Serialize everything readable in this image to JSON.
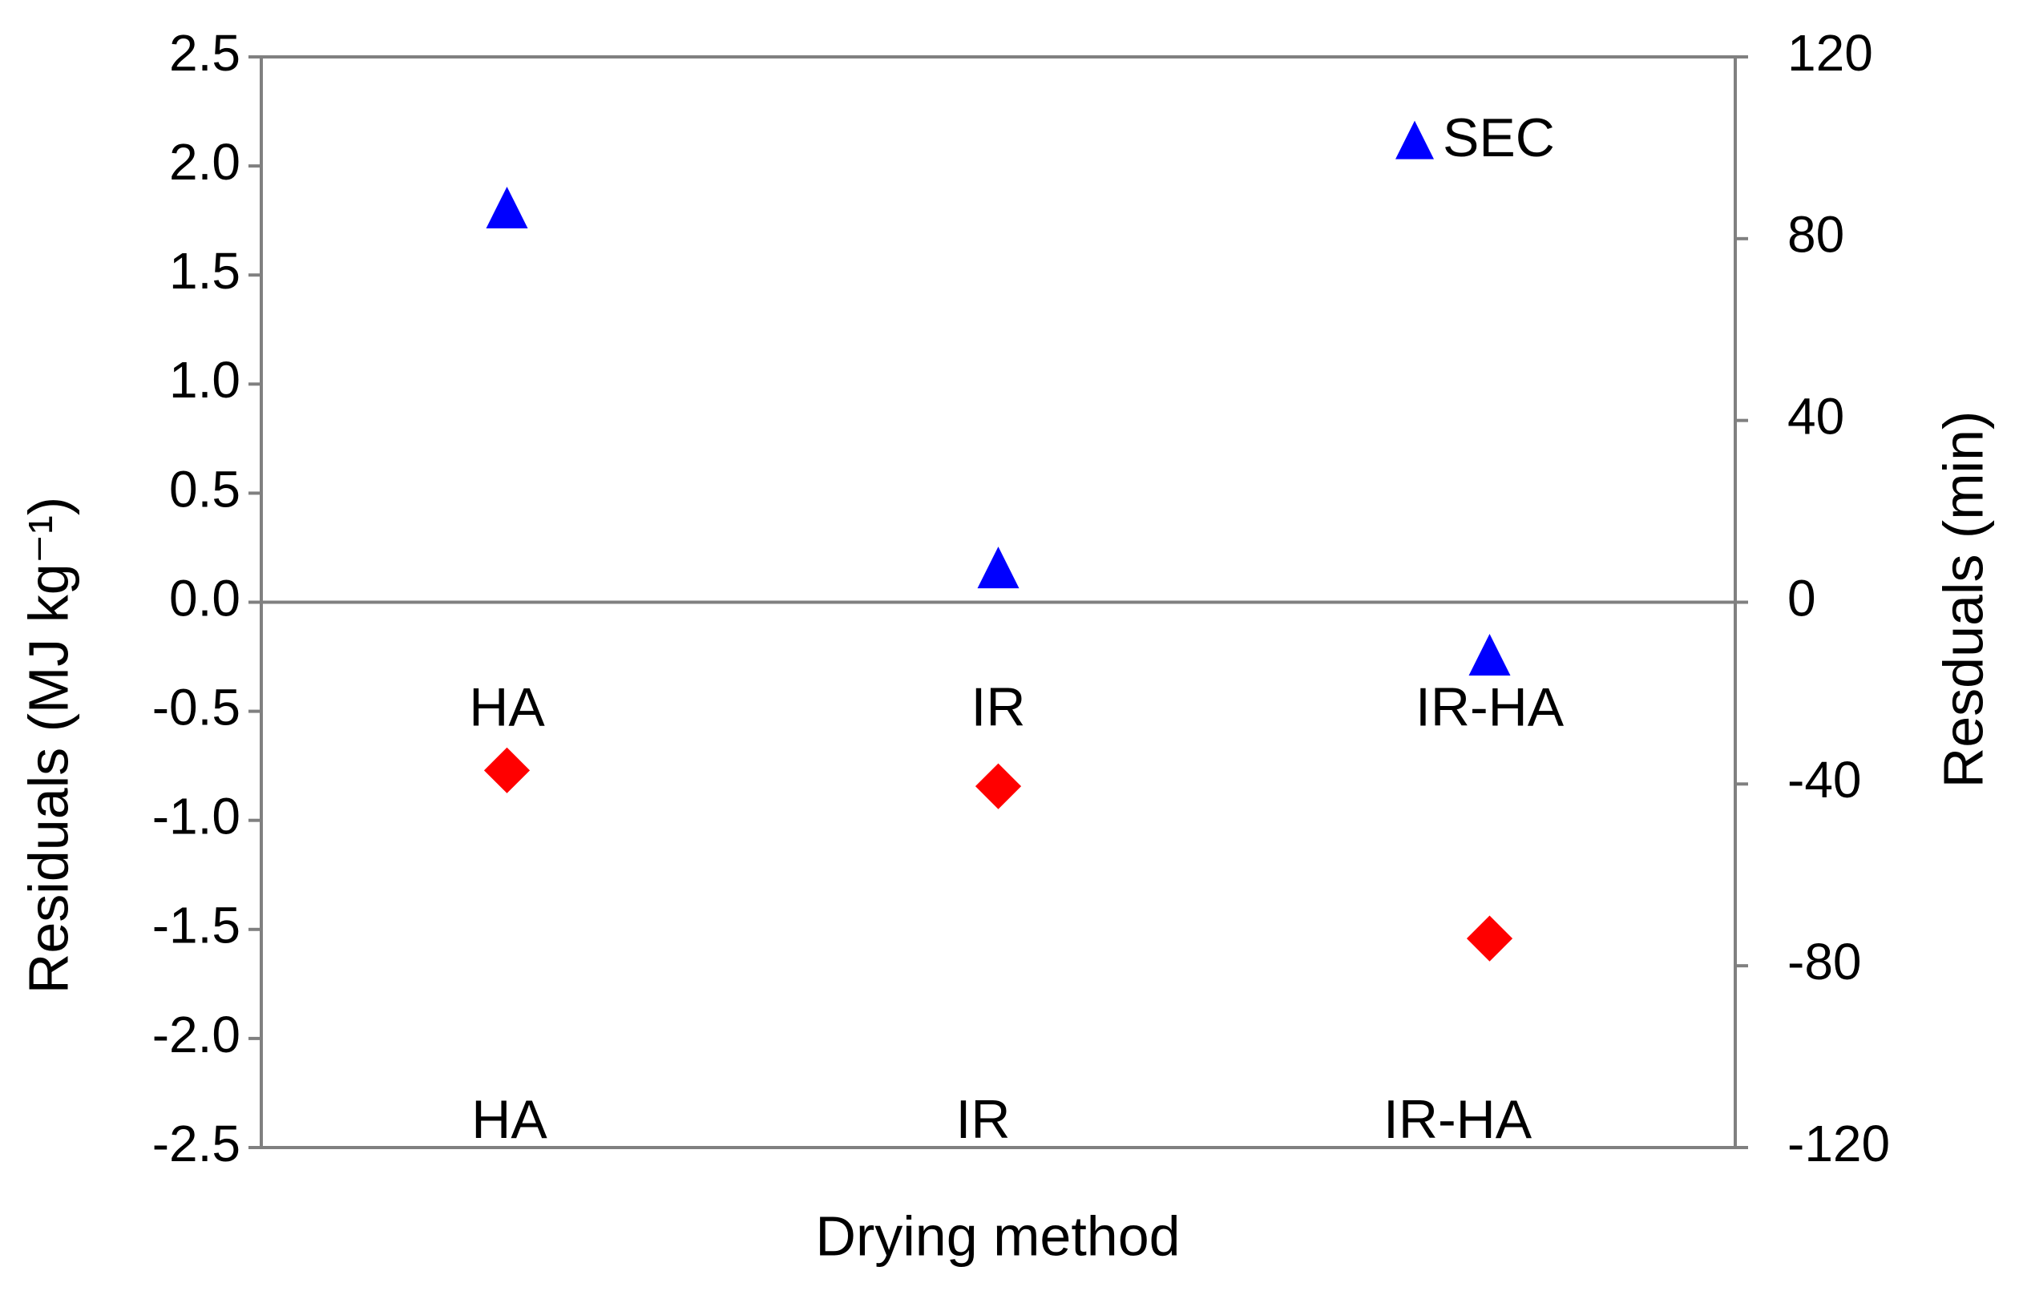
{
  "chart_data": {
    "type": "scatter",
    "x_label": "Drying method",
    "y_label": "Residuals (MJ kg⁻¹)",
    "y2_label": "Resduals (min)",
    "categories": [
      "HA",
      "IR",
      "IR-HA"
    ],
    "series": [
      {
        "name": "SEC",
        "color": "#0000ff",
        "marker": "triangle",
        "values": [
          1.8,
          0.15,
          -0.25
        ]
      },
      {
        "color": "#ff0000",
        "marker": "diamond",
        "axis": "y2",
        "values": [
          -37,
          -40.5,
          -74
        ]
      }
    ],
    "ylim": [
      -2.5,
      2.5
    ],
    "yticks": [
      -2.5,
      {
        "value": -2,
        "label": "-2.0"
      },
      -1.5,
      {
        "value": -1,
        "label": "-1.0"
      },
      -0.5,
      {
        "value": 0,
        "label": "0.0"
      },
      0.5,
      {
        "value": 1,
        "label": "1.0"
      },
      1.5,
      {
        "value": 2,
        "label": "2.0"
      },
      2.5
    ],
    "y2lim": [
      -120,
      120
    ],
    "y2ticks": [
      -120,
      -80,
      -40,
      0,
      40,
      80,
      120
    ],
    "zero_line": true,
    "legend": "top-right"
  }
}
